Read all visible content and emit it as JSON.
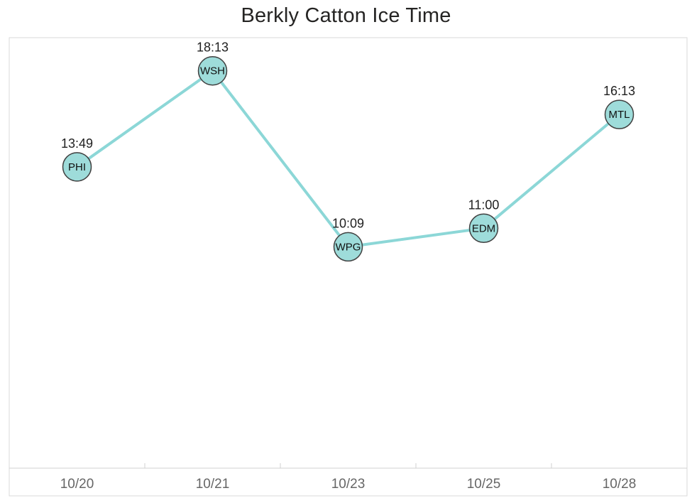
{
  "title": "Berkly Catton Ice Time",
  "chart_data": {
    "type": "line",
    "title": "Berkly Catton Ice Time",
    "xlabel": "",
    "ylabel": "",
    "categories": [
      "10/20",
      "10/21",
      "10/23",
      "10/25",
      "10/28"
    ],
    "series": [
      {
        "name": "Ice Time",
        "points": [
          {
            "team": "PHI",
            "time": "13:49",
            "minutes": 13.82
          },
          {
            "team": "WSH",
            "time": "18:13",
            "minutes": 18.22
          },
          {
            "team": "WPG",
            "time": "10:09",
            "minutes": 10.15
          },
          {
            "team": "EDM",
            "time": "11:00",
            "minutes": 11.0
          },
          {
            "team": "MTL",
            "time": "16:13",
            "minutes": 16.22
          }
        ]
      }
    ],
    "ylim_minutes": [
      0,
      20
    ],
    "grid": false,
    "legend": "none",
    "marker_style": "circle-with-team-label",
    "colors": {
      "line": "#8CD7D7",
      "marker_fill": "#9EDCDA",
      "marker_stroke": "#404040",
      "axis": "#D0D0D0",
      "border": "#D9D9D9",
      "axis_label": "#666666",
      "data_label": "#1F1F1F",
      "title": "#252423"
    }
  }
}
